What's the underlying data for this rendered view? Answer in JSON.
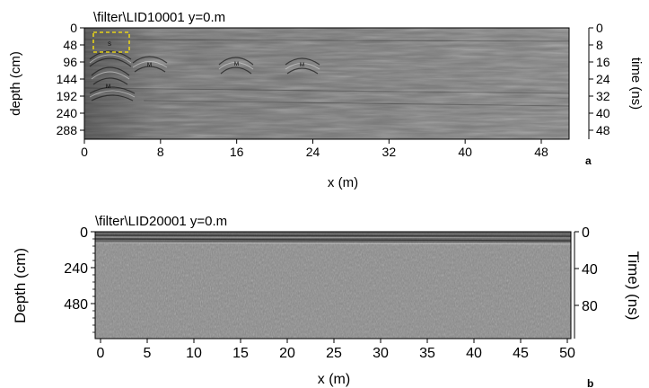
{
  "panel_a": {
    "title": "\\filter\\LID10001   y=0.m",
    "ylabel_left": "depth (cm)",
    "ylabel_right": "time (ns)",
    "xlabel": "x (m)",
    "label": "a",
    "x_ticks": [
      "0",
      "8",
      "16",
      "24",
      "32",
      "40",
      "48"
    ],
    "depth_ticks": [
      "0",
      "48",
      "96",
      "144",
      "192",
      "240",
      "288"
    ],
    "time_ticks": [
      "0",
      "8",
      "16",
      "24",
      "32",
      "40",
      "48"
    ],
    "annotations": [
      "S",
      "M",
      "M",
      "M",
      "M"
    ],
    "annotation_color": "#e6d21a"
  },
  "panel_b": {
    "title": "\\filter\\LID20001   y=0.m",
    "ylabel_left": "Depth (cm)",
    "ylabel_right": "Time) (ns)",
    "xlabel": "x (m)",
    "label": "b",
    "x_ticks": [
      "0",
      "5",
      "10",
      "15",
      "20",
      "25",
      "30",
      "35",
      "40",
      "45",
      "50"
    ],
    "depth_ticks": [
      "0",
      "240",
      "480"
    ],
    "time_ticks": [
      "0",
      "40",
      "80"
    ]
  }
}
